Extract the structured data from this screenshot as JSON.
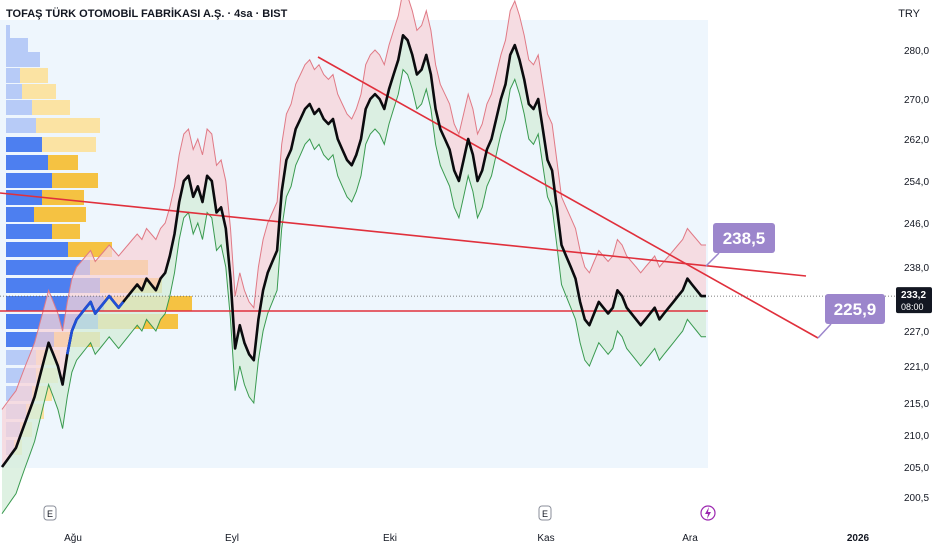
{
  "header": {
    "title": "TOFAŞ TÜRK OTOMOBİL FABRİKASI A.Ş. · 4sa · BIST",
    "currency": "TRY"
  },
  "chart_data": {
    "type": "line",
    "title": "TOFAŞ TÜRK OTOMOBİL FABRİKASI A.Ş. · 4sa · BIST",
    "y_ticks": [
      "280,0",
      "270,0",
      "262,0",
      "254,0",
      "246,0",
      "238,0",
      "227,0",
      "221,0",
      "215,0",
      "210,0",
      "205,0",
      "200,5"
    ],
    "x_ticks": [
      "Ağu",
      "Eyl",
      "Eki",
      "Kas",
      "Ara",
      "2026"
    ],
    "ylim": [
      200.5,
      284
    ],
    "price_label": "233,2",
    "countdown_label": "08:00",
    "callouts": [
      "238,5",
      "225,9"
    ],
    "event_markers": [
      "E",
      "E"
    ],
    "series": [
      {
        "values": [
          205,
          206,
          207,
          208,
          210,
          212,
          214,
          216,
          219,
          222,
          225,
          223,
          221,
          218,
          223,
          227,
          229,
          230,
          231,
          232,
          230,
          231,
          232,
          233,
          232,
          231,
          232,
          233,
          234,
          235,
          234,
          236,
          235,
          234,
          236,
          237,
          240,
          244,
          250,
          254,
          255,
          251,
          253,
          250,
          255,
          254,
          248,
          249,
          245,
          236,
          224,
          228,
          225,
          223,
          222,
          229,
          234,
          237,
          239,
          241,
          252,
          258,
          260,
          264,
          266,
          268,
          269,
          267,
          268,
          266,
          265,
          266,
          262,
          260,
          258,
          257,
          259,
          262,
          268,
          270,
          271,
          270,
          268,
          272,
          275,
          278,
          283,
          282,
          279,
          275,
          276,
          279,
          275,
          268,
          264,
          262,
          260,
          256,
          254,
          258,
          262,
          259,
          254,
          256,
          260,
          262,
          266,
          270,
          273,
          279,
          281,
          278,
          274,
          269,
          268,
          270,
          264,
          258,
          256,
          249,
          242,
          240,
          238,
          236,
          232,
          229,
          228,
          230,
          232,
          231,
          230,
          231,
          234,
          233,
          231,
          230,
          229,
          228,
          229,
          230,
          231,
          229,
          230,
          231,
          232,
          233,
          234,
          236,
          235,
          234,
          233,
          233
        ]
      }
    ]
  },
  "colors": {
    "price_line": "#0b0b0e",
    "price_line_blue": "#1f4fd8",
    "trend_line": "#e0303c",
    "support_line": "#e0303c",
    "band_green_line": "#3a9a50",
    "band_green_fill": "#d6eedb",
    "band_red_line": "#e07a86",
    "band_red_fill": "#f7d3d8",
    "profile_blue": "#4d7ff0",
    "profile_blue_light": "#b7cbf7",
    "profile_yellow": "#f5c242",
    "profile_yellow_light": "#fbe3a3",
    "plot_bg": "#eef6fd",
    "callout_bg": "#9c86cc",
    "price_tag_bg": "#131722",
    "event_icon": "#9c27b0"
  }
}
